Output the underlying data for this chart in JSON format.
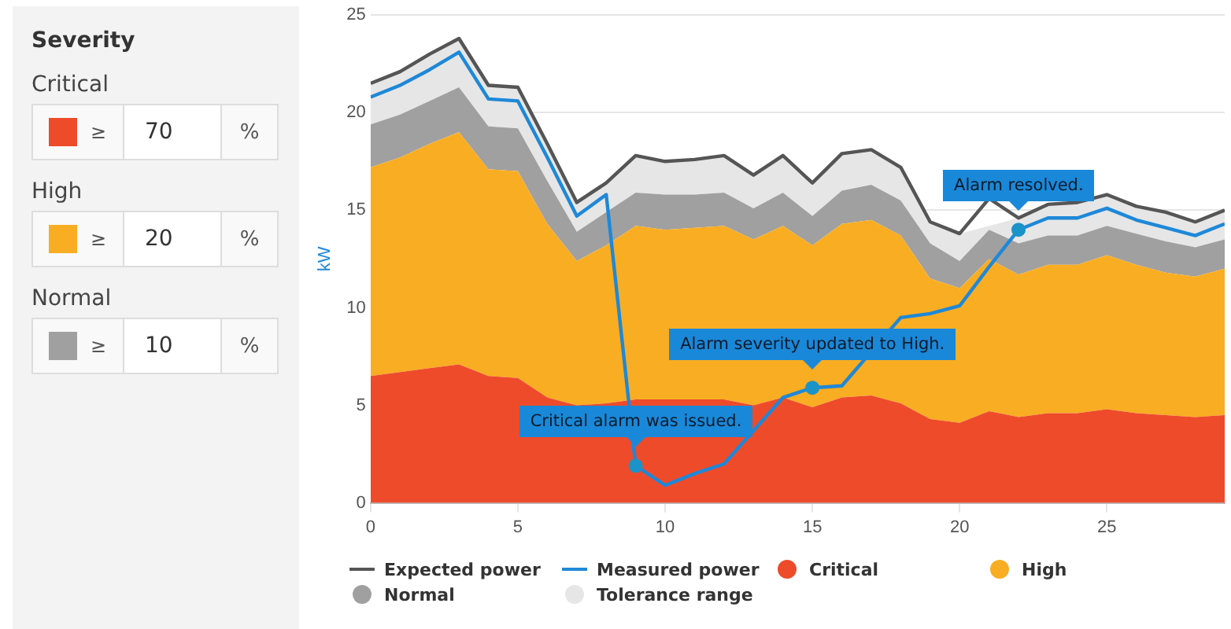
{
  "chart_data": [
    {
      "type": "other",
      "title": "Severity",
      "annotations": [
        "Critical",
        "≥",
        "70",
        "%",
        "High",
        "≥",
        "20",
        "%",
        "Normal",
        "≥",
        "10",
        "%"
      ]
    },
    {
      "type": "area",
      "ylabel": "kW",
      "stacked": true,
      "grid": "y",
      "legend": "bottom",
      "marker": "none",
      "line_style": "solid",
      "x": [
        0,
        1,
        2,
        3,
        4,
        5,
        6,
        7,
        8,
        9,
        10,
        11,
        12,
        13,
        14,
        15,
        16,
        17,
        18,
        19,
        20,
        21,
        22,
        23,
        24,
        25,
        26,
        27,
        28,
        29
      ],
      "xlim": [
        0,
        29
      ],
      "xticks": [
        0,
        5,
        10,
        15,
        20,
        25
      ],
      "ylim": [
        0,
        25
      ],
      "yticks": [
        0,
        5,
        10,
        15,
        20,
        25
      ],
      "series": [
        {
          "name": "Critical",
          "type": "area",
          "color": "#ee4b2b",
          "values": [
            6.5,
            6.7,
            6.9,
            7.1,
            6.5,
            6.4,
            5.4,
            5.0,
            5.1,
            5.3,
            5.3,
            5.3,
            5.3,
            5.0,
            5.4,
            4.9,
            5.4,
            5.5,
            5.1,
            4.3,
            4.1,
            4.7,
            4.4,
            4.6,
            4.6,
            4.8,
            4.6,
            4.5,
            4.4,
            4.5
          ]
        },
        {
          "name": "High",
          "type": "area",
          "color": "#f9ad22",
          "values": [
            10.7,
            11.0,
            11.5,
            11.9,
            10.6,
            10.6,
            8.9,
            7.4,
            8.1,
            8.9,
            8.7,
            8.8,
            8.9,
            8.5,
            8.8,
            8.3,
            8.9,
            9.0,
            8.6,
            7.2,
            6.9,
            7.8,
            7.3,
            7.6,
            7.6,
            7.9,
            7.6,
            7.3,
            7.2,
            7.5
          ]
        },
        {
          "name": "Normal",
          "type": "area",
          "color": "#a0a0a0",
          "values": [
            2.2,
            2.2,
            2.2,
            2.3,
            2.2,
            2.2,
            2.2,
            1.5,
            1.7,
            1.7,
            1.8,
            1.7,
            1.7,
            1.6,
            1.7,
            1.5,
            1.7,
            1.8,
            1.8,
            1.8,
            1.4,
            1.5,
            1.6,
            1.5,
            1.5,
            1.5,
            1.6,
            1.6,
            1.5,
            1.5
          ]
        },
        {
          "name": "Tolerance range",
          "type": "area",
          "color": "#e6e6e6",
          "values": [
            2.1,
            2.2,
            2.4,
            2.5,
            2.1,
            2.1,
            1.9,
            1.5,
            1.5,
            1.9,
            1.7,
            1.8,
            1.9,
            1.7,
            1.9,
            1.7,
            1.9,
            1.8,
            1.7,
            1.1,
            1.4,
            null,
            1.3,
            1.6,
            1.7,
            1.6,
            1.4,
            1.5,
            1.3,
            1.5
          ]
        },
        {
          "name": "Expected power",
          "type": "line",
          "color": "#555555",
          "values": [
            21.5,
            22.1,
            23.0,
            23.8,
            21.4,
            21.3,
            18.4,
            15.4,
            16.4,
            17.8,
            17.5,
            17.6,
            17.8,
            16.8,
            17.8,
            16.4,
            17.9,
            18.1,
            17.2,
            14.4,
            13.8,
            15.6,
            14.6,
            15.3,
            15.4,
            15.8,
            15.2,
            14.9,
            14.4,
            15.0
          ]
        },
        {
          "name": "Measured power",
          "type": "line",
          "color": "#1e88d8",
          "values": [
            20.8,
            21.4,
            22.2,
            23.1,
            20.7,
            20.6,
            17.7,
            14.7,
            15.8,
            1.9,
            0.9,
            1.5,
            2.0,
            null,
            5.4,
            5.9,
            6.0,
            null,
            9.5,
            9.7,
            10.1,
            12.1,
            14.0,
            14.6,
            14.6,
            15.1,
            14.5,
            14.1,
            13.7,
            14.3
          ]
        }
      ],
      "annotations": [
        {
          "text": "Critical alarm was issued.",
          "x": 9,
          "y": 1.9
        },
        {
          "text": "Alarm severity updated to High.",
          "x": 15,
          "y": 5.9
        },
        {
          "text": "Alarm resolved.",
          "x": 22,
          "y": 14.0
        }
      ]
    }
  ]
}
